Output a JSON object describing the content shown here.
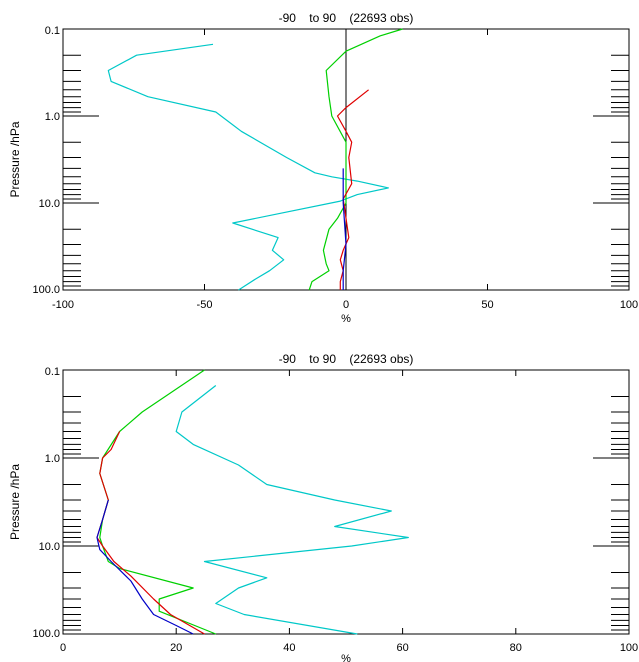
{
  "chart_data": [
    {
      "type": "line",
      "title": "-90    to 90    (22693 obs)",
      "xlabel": "%",
      "ylabel": "Pressure /hPa",
      "xlim": [
        -100,
        100
      ],
      "ylim": [
        100,
        0.1
      ],
      "yscale": "log",
      "xticks": [
        -100,
        -50,
        0,
        50,
        100
      ],
      "xtick_labels": [
        "-100",
        "-50",
        "0",
        "50",
        "100"
      ],
      "yticks": [
        0.1,
        1,
        10,
        100
      ],
      "ytick_labels": [
        "0.1",
        "1.0",
        "10.0",
        "100.0"
      ],
      "zero_line": true,
      "series": [
        {
          "color": "#00c8c8",
          "points": [
            [
              -47,
              0.15
            ],
            [
              -74,
              0.2
            ],
            [
              -84,
              0.3
            ],
            [
              -83,
              0.4
            ],
            [
              -70,
              0.6
            ],
            [
              -46,
              0.9
            ],
            [
              -37,
              1.5
            ],
            [
              -21,
              3
            ],
            [
              -11,
              4.5
            ],
            [
              -5,
              5
            ],
            [
              4,
              5.6
            ],
            [
              15,
              6.7
            ],
            [
              4,
              8
            ],
            [
              -2,
              9.5
            ],
            [
              -40,
              17
            ],
            [
              -24,
              25
            ],
            [
              -26,
              35
            ],
            [
              -22,
              45
            ],
            [
              -27,
              60
            ],
            [
              -32,
              75
            ],
            [
              -38,
              100
            ]
          ]
        },
        {
          "color": "#00d000",
          "points": [
            [
              20,
              0.1
            ],
            [
              12,
              0.12
            ],
            [
              0,
              0.18
            ],
            [
              -7,
              0.3
            ],
            [
              -6,
              0.6
            ],
            [
              -5,
              1.0
            ],
            [
              0,
              2
            ],
            [
              0,
              5
            ],
            [
              0,
              8
            ],
            [
              0,
              10
            ],
            [
              -3,
              15
            ],
            [
              -6,
              20
            ],
            [
              -8,
              35
            ],
            [
              -7,
              50
            ],
            [
              -6,
              60
            ],
            [
              -12,
              80
            ],
            [
              -13,
              100
            ]
          ]
        },
        {
          "color": "#e00000",
          "points": [
            [
              8,
              0.5
            ],
            [
              0,
              0.8
            ],
            [
              -3,
              1
            ],
            [
              0,
              1.5
            ],
            [
              2,
              2
            ],
            [
              1,
              3
            ],
            [
              2,
              6
            ],
            [
              -1,
              9
            ],
            [
              0,
              15
            ],
            [
              1,
              25
            ],
            [
              -1,
              35
            ],
            [
              -2,
              45
            ],
            [
              -1,
              60
            ],
            [
              -2,
              80
            ],
            [
              -2,
              100
            ]
          ]
        },
        {
          "color": "#0000c8",
          "points": [
            [
              -1,
              4
            ],
            [
              -1,
              10
            ],
            [
              0,
              30
            ],
            [
              -1,
              60
            ],
            [
              -1,
              100
            ]
          ]
        }
      ]
    },
    {
      "type": "line",
      "title": "-90    to 90    (22693 obs)",
      "xlabel": "%",
      "ylabel": "Pressure /hPa",
      "xlim": [
        0,
        100
      ],
      "ylim": [
        100,
        0.1
      ],
      "yscale": "log",
      "xticks": [
        0,
        20,
        40,
        60,
        80,
        100
      ],
      "xtick_labels": [
        "0",
        "20",
        "40",
        "60",
        "80",
        "100"
      ],
      "yticks": [
        0.1,
        1,
        10,
        100
      ],
      "ytick_labels": [
        "0.1",
        "1.0",
        "10.0",
        "100.0"
      ],
      "zero_line": false,
      "series": [
        {
          "color": "#00c8c8",
          "points": [
            [
              27,
              0.15
            ],
            [
              21,
              0.3
            ],
            [
              20,
              0.5
            ],
            [
              23,
              0.7
            ],
            [
              31,
              1.2
            ],
            [
              36,
              2
            ],
            [
              48,
              3
            ],
            [
              58,
              4
            ],
            [
              48,
              6
            ],
            [
              61,
              8
            ],
            [
              51,
              10
            ],
            [
              25,
              15
            ],
            [
              36,
              23
            ],
            [
              31,
              30
            ],
            [
              27,
              45
            ],
            [
              32,
              60
            ],
            [
              52,
              100
            ]
          ]
        },
        {
          "color": "#00d000",
          "points": [
            [
              25,
              0.1
            ],
            [
              14,
              0.3
            ],
            [
              10,
              0.5
            ],
            [
              7,
              1
            ],
            [
              6.5,
              1.5
            ],
            [
              8,
              3
            ],
            [
              7,
              5
            ],
            [
              6.5,
              8
            ],
            [
              7,
              10
            ],
            [
              8,
              15
            ],
            [
              10,
              18
            ],
            [
              23,
              30
            ],
            [
              17,
              40
            ],
            [
              17,
              55
            ],
            [
              27,
              100
            ]
          ]
        },
        {
          "color": "#e00000",
          "points": [
            [
              10,
              0.5
            ],
            [
              8.5,
              0.8
            ],
            [
              7,
              1.0
            ],
            [
              6.5,
              1.5
            ],
            [
              8,
              3
            ],
            [
              7,
              5
            ],
            [
              6,
              8
            ],
            [
              7,
              10
            ],
            [
              9,
              15
            ],
            [
              12,
              22
            ],
            [
              16,
              40
            ],
            [
              19,
              60
            ],
            [
              25,
              100
            ]
          ]
        },
        {
          "color": "#0000c8",
          "points": [
            [
              8,
              3
            ],
            [
              7,
              5
            ],
            [
              6,
              8
            ],
            [
              6.5,
              11
            ],
            [
              8.5,
              15
            ],
            [
              12,
              25
            ],
            [
              14,
              40
            ],
            [
              16,
              60
            ],
            [
              20,
              80
            ],
            [
              23,
              100
            ]
          ]
        }
      ]
    }
  ]
}
